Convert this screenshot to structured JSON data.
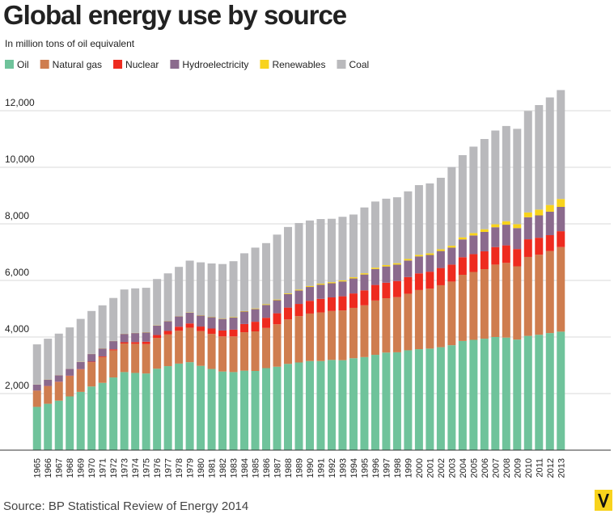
{
  "chart_data": {
    "type": "stacked-bar",
    "title": "Global energy use by source",
    "subtitle": "In million tons of oil equivalent",
    "source": "Source: BP Statistical Review of Energy 2014",
    "categories": [
      "1965",
      "1966",
      "1967",
      "1968",
      "1969",
      "1970",
      "1971",
      "1972",
      "1973",
      "1974",
      "1975",
      "1976",
      "1977",
      "1978",
      "1979",
      "1980",
      "1981",
      "1982",
      "1983",
      "1984",
      "1985",
      "1986",
      "1987",
      "1988",
      "1989",
      "1990",
      "1991",
      "1992",
      "1993",
      "1994",
      "1995",
      "1996",
      "1997",
      "1998",
      "1999",
      "2000",
      "2001",
      "2002",
      "2003",
      "2004",
      "2005",
      "2006",
      "2007",
      "2008",
      "2009",
      "2010",
      "2011",
      "2012",
      "2013"
    ],
    "series": [
      {
        "name": "Oil",
        "color": "#6fc39b",
        "values": [
          1530,
          1640,
          1750,
          1900,
          2060,
          2250,
          2380,
          2570,
          2760,
          2730,
          2710,
          2880,
          2970,
          3060,
          3110,
          2980,
          2870,
          2780,
          2760,
          2810,
          2800,
          2900,
          2950,
          3050,
          3100,
          3150,
          3150,
          3190,
          3180,
          3250,
          3290,
          3370,
          3450,
          3460,
          3530,
          3570,
          3590,
          3640,
          3710,
          3860,
          3900,
          3940,
          4000,
          3980,
          3910,
          4040,
          4080,
          4140,
          4190
        ]
      },
      {
        "name": "Natural gas",
        "color": "#cf7d4f",
        "values": [
          570,
          620,
          660,
          720,
          790,
          860,
          910,
          960,
          1010,
          1030,
          1040,
          1090,
          1120,
          1160,
          1220,
          1230,
          1240,
          1240,
          1260,
          1360,
          1400,
          1420,
          1500,
          1570,
          1640,
          1680,
          1720,
          1730,
          1760,
          1780,
          1830,
          1920,
          1920,
          1950,
          2000,
          2090,
          2120,
          2190,
          2250,
          2340,
          2400,
          2460,
          2560,
          2640,
          2590,
          2790,
          2830,
          2900,
          2990
        ]
      },
      {
        "name": "Nuclear",
        "color": "#ee2b1f",
        "values": [
          6,
          8,
          9,
          12,
          14,
          18,
          25,
          35,
          45,
          60,
          85,
          100,
          125,
          145,
          150,
          160,
          190,
          210,
          240,
          290,
          340,
          360,
          390,
          420,
          430,
          450,
          480,
          480,
          500,
          510,
          530,
          550,
          550,
          570,
          590,
          590,
          600,
          610,
          600,
          620,
          630,
          630,
          620,
          620,
          610,
          625,
          600,
          560,
          560
        ]
      },
      {
        "name": "Hydroelectricity",
        "color": "#8b6a8d",
        "values": [
          210,
          225,
          230,
          240,
          255,
          270,
          280,
          290,
          295,
          320,
          330,
          335,
          345,
          365,
          380,
          390,
          400,
          410,
          425,
          440,
          450,
          455,
          460,
          475,
          475,
          490,
          500,
          500,
          525,
          530,
          560,
          565,
          575,
          580,
          585,
          600,
          590,
          600,
          600,
          630,
          660,
          685,
          700,
          730,
          740,
          780,
          790,
          830,
          860
        ]
      },
      {
        "name": "Renewables",
        "color": "#f8d31c",
        "values": [
          4,
          4,
          4,
          5,
          5,
          5,
          5,
          6,
          6,
          6,
          7,
          7,
          8,
          8,
          9,
          10,
          12,
          13,
          15,
          18,
          20,
          22,
          24,
          26,
          30,
          34,
          36,
          38,
          40,
          42,
          44,
          46,
          48,
          50,
          52,
          55,
          58,
          62,
          66,
          74,
          84,
          94,
          105,
          123,
          140,
          168,
          205,
          237,
          279
        ]
      },
      {
        "name": "Coal",
        "color": "#b9b9bc",
        "values": [
          1420,
          1443,
          1467,
          1463,
          1516,
          1517,
          1520,
          1519,
          1564,
          1574,
          1568,
          1638,
          1682,
          1742,
          1831,
          1870,
          1888,
          1927,
          1980,
          2042,
          2150,
          2163,
          2296,
          2349,
          2355,
          2316,
          2284,
          2242,
          2245,
          2218,
          2326,
          2339,
          2347,
          2330,
          2393,
          2465,
          2472,
          2528,
          2784,
          2906,
          3056,
          3191,
          3315,
          3367,
          3370,
          3587,
          3695,
          3803,
          3851
        ]
      }
    ],
    "ylim": [
      0,
      13000
    ],
    "yticks": [
      {
        "value": 2000,
        "label": "2,000"
      },
      {
        "value": 4000,
        "label": "4,000"
      },
      {
        "value": 6000,
        "label": "6,000"
      },
      {
        "value": 8000,
        "label": "8,000"
      },
      {
        "value": 10000,
        "label": "10,000"
      },
      {
        "value": 12000,
        "label": "12,000"
      }
    ],
    "grid": true,
    "legend": "top"
  }
}
